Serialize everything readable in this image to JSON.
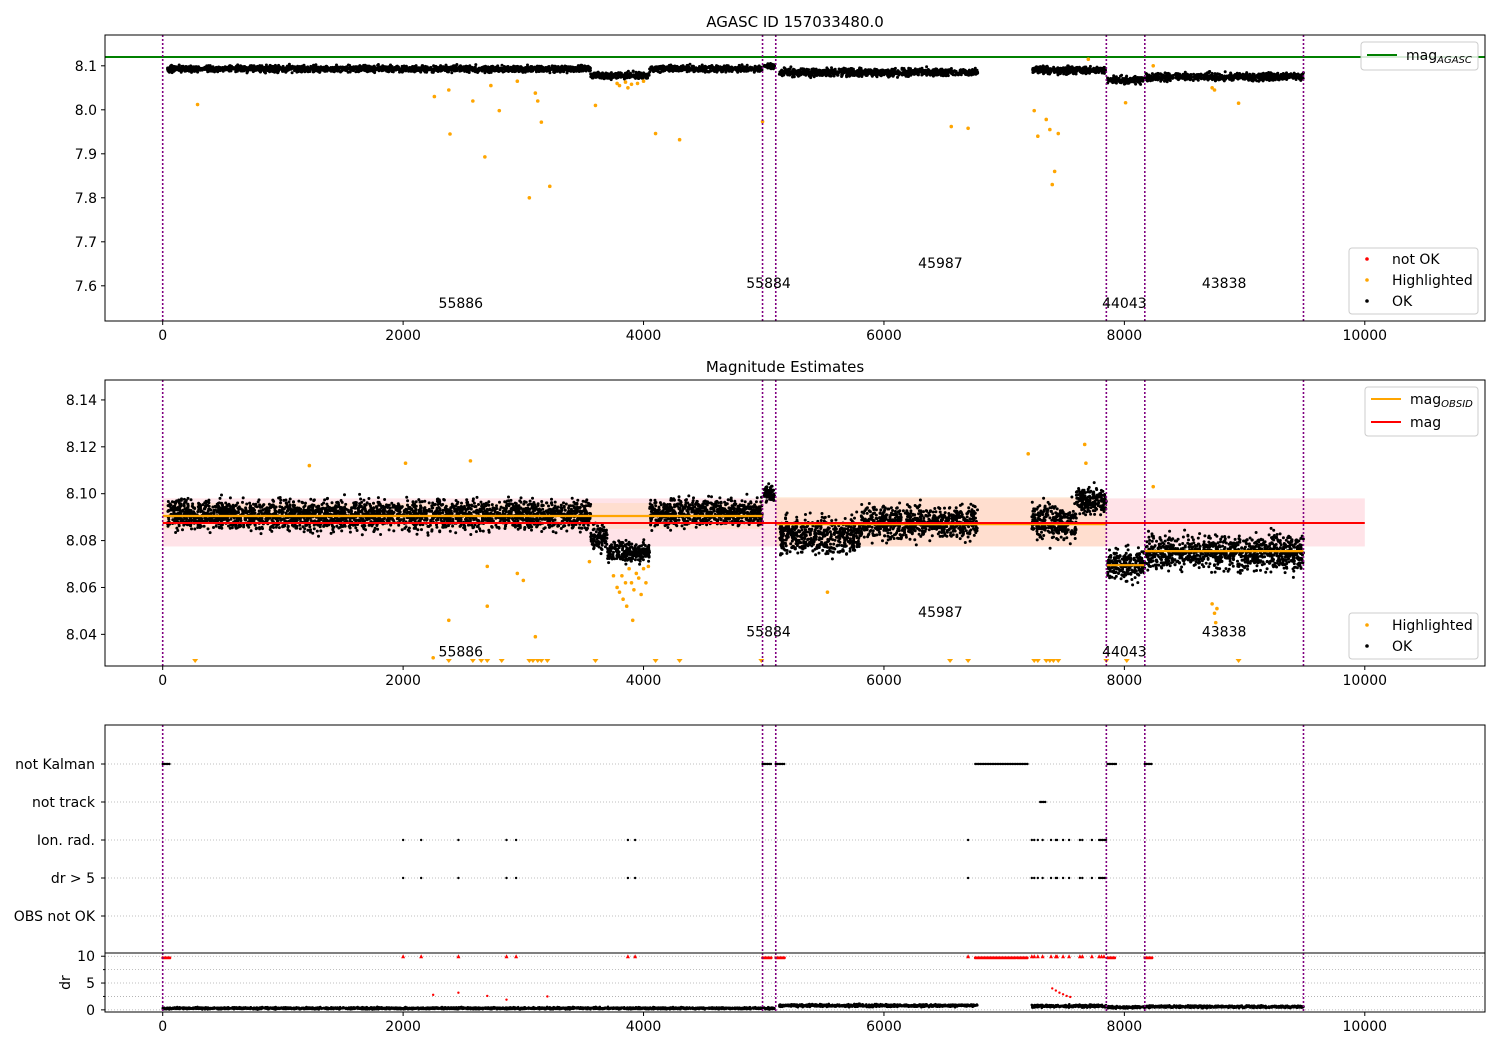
{
  "figure": {
    "title": "AGASC ID 157033480.0"
  },
  "colors": {
    "obs_line": "#800080",
    "ok": "#000000",
    "highlighted": "#ffa500",
    "not_ok": "#ff0000",
    "mag_agasc": "#008000",
    "mag": "#ff0000",
    "mag_obsid": "#ffa500",
    "band_mag": "#ffc0cb",
    "band_obsid": "#ffdab9"
  },
  "chart_data": [
    {
      "id": "top",
      "type": "scatter",
      "title": "AGASC ID 157033480.0",
      "xlim": [
        -480,
        11000
      ],
      "ylim": [
        7.52,
        8.17
      ],
      "xticks": [
        0,
        2000,
        4000,
        6000,
        8000,
        10000
      ],
      "xtick_labels": [
        "0",
        "2000",
        "4000",
        "6000",
        "8000",
        "10000"
      ],
      "yticks": [
        7.6,
        7.7,
        7.8,
        7.9,
        8.0,
        8.1
      ],
      "ytick_labels": [
        "7.6",
        "7.7",
        "7.8",
        "7.9",
        "8.0",
        "8.1"
      ],
      "obs_boundaries": [
        0,
        4990,
        5100,
        7850,
        8170,
        9490
      ],
      "obs_labels": [
        {
          "text": "55886",
          "x": 2480,
          "y": 7.55
        },
        {
          "text": "55884",
          "x": 5040,
          "y": 7.595
        },
        {
          "text": "45987",
          "x": 6470,
          "y": 7.64
        },
        {
          "text": "44043",
          "x": 8000,
          "y": 7.55
        },
        {
          "text": "43838",
          "x": 8830,
          "y": 7.595
        }
      ],
      "mag_agasc": 8.12,
      "legend_upper": {
        "placement": "upper right",
        "entries": [
          "mag_AGASC"
        ]
      },
      "legend_lower": {
        "placement": "lower right",
        "entries": [
          "not OK",
          "Highlighted",
          "OK"
        ]
      },
      "ok_segments": [
        {
          "x0": 40,
          "x1": 3560,
          "y": 8.093,
          "spread": 0.01
        },
        {
          "x0": 3560,
          "x1": 4050,
          "y": 8.078,
          "spread": 0.01
        },
        {
          "x0": 4050,
          "x1": 4990,
          "y": 8.093,
          "spread": 0.01
        },
        {
          "x0": 5000,
          "x1": 5090,
          "y": 8.1,
          "spread": 0.008
        },
        {
          "x0": 5130,
          "x1": 6780,
          "y": 8.085,
          "spread": 0.012
        },
        {
          "x0": 7230,
          "x1": 7850,
          "y": 8.09,
          "spread": 0.012
        },
        {
          "x0": 7860,
          "x1": 8170,
          "y": 8.068,
          "spread": 0.012
        },
        {
          "x0": 8180,
          "x1": 9490,
          "y": 8.075,
          "spread": 0.012
        }
      ],
      "highlighted_points": [
        [
          290,
          8.012
        ],
        [
          2260,
          8.03
        ],
        [
          2380,
          8.045
        ],
        [
          2390,
          7.945
        ],
        [
          2580,
          8.02
        ],
        [
          2680,
          7.893
        ],
        [
          2730,
          8.055
        ],
        [
          2800,
          7.998
        ],
        [
          2950,
          8.065
        ],
        [
          3050,
          7.8
        ],
        [
          3100,
          8.038
        ],
        [
          3120,
          8.02
        ],
        [
          3150,
          7.972
        ],
        [
          3220,
          7.826
        ],
        [
          3600,
          8.01
        ],
        [
          3780,
          8.06
        ],
        [
          3800,
          8.055
        ],
        [
          3850,
          8.063
        ],
        [
          3870,
          8.05
        ],
        [
          3900,
          8.058
        ],
        [
          3950,
          8.06
        ],
        [
          4000,
          8.065
        ],
        [
          4100,
          7.946
        ],
        [
          4300,
          7.932
        ],
        [
          4990,
          7.973
        ],
        [
          6560,
          7.962
        ],
        [
          6700,
          7.958
        ],
        [
          7250,
          7.998
        ],
        [
          7280,
          7.94
        ],
        [
          7350,
          7.978
        ],
        [
          7400,
          7.83
        ],
        [
          7420,
          7.86
        ],
        [
          7450,
          7.946
        ],
        [
          7380,
          7.955
        ],
        [
          7700,
          8.115
        ],
        [
          8010,
          8.016
        ],
        [
          8240,
          8.1
        ],
        [
          8730,
          8.05
        ],
        [
          8750,
          8.045
        ],
        [
          8950,
          8.015
        ]
      ]
    },
    {
      "id": "mid",
      "type": "scatter",
      "title": "Magnitude Estimates",
      "xlim": [
        -480,
        11000
      ],
      "ylim": [
        8.0265,
        8.1485
      ],
      "xticks": [
        0,
        2000,
        4000,
        6000,
        8000,
        10000
      ],
      "xtick_labels": [
        "0",
        "2000",
        "4000",
        "6000",
        "8000",
        "10000"
      ],
      "yticks": [
        8.04,
        8.06,
        8.08,
        8.1,
        8.12,
        8.14
      ],
      "ytick_labels": [
        "8.04",
        "8.06",
        "8.08",
        "8.10",
        "8.12",
        "8.14"
      ],
      "obs_boundaries": [
        0,
        4990,
        5100,
        7850,
        8170,
        9490
      ],
      "obs_labels": [
        {
          "text": "55886",
          "x": 2480,
          "y": 8.0305
        },
        {
          "text": "55884",
          "x": 5040,
          "y": 8.039
        },
        {
          "text": "45987",
          "x": 6470,
          "y": 8.0475
        },
        {
          "text": "44043",
          "x": 8000,
          "y": 8.0305
        },
        {
          "text": "43838",
          "x": 8830,
          "y": 8.039
        }
      ],
      "mag": 8.0875,
      "mag_band": [
        8.0775,
        8.098
      ],
      "mag_line_x": [
        0,
        10000
      ],
      "mag_obsid": [
        {
          "x0": 0,
          "x1": 4990,
          "y": 8.0905,
          "band": [
            8.085,
            8.096
          ]
        },
        {
          "x0": 5100,
          "x1": 7850,
          "y": 8.087,
          "band": [
            8.0775,
            8.0985
          ]
        },
        {
          "x0": 7850,
          "x1": 8170,
          "y": 8.0695,
          "band": [
            8.0695,
            8.0695
          ]
        },
        {
          "x0": 8170,
          "x1": 9490,
          "y": 8.0755,
          "band": [
            8.0755,
            8.0755
          ]
        }
      ],
      "legend_upper": {
        "placement": "upper right",
        "entries": [
          "mag_OBSID",
          "mag"
        ]
      },
      "legend_lower": {
        "placement": "lower right",
        "entries": [
          "Highlighted",
          "OK"
        ]
      },
      "ok_segments": [
        {
          "x0": 40,
          "x1": 3560,
          "y": 8.091,
          "spread": 0.009
        },
        {
          "x0": 3560,
          "x1": 3700,
          "y": 8.082,
          "spread": 0.007
        },
        {
          "x0": 3700,
          "x1": 4050,
          "y": 8.075,
          "spread": 0.006
        },
        {
          "x0": 4050,
          "x1": 4990,
          "y": 8.092,
          "spread": 0.008
        },
        {
          "x0": 5000,
          "x1": 5090,
          "y": 8.1,
          "spread": 0.005
        },
        {
          "x0": 5130,
          "x1": 5800,
          "y": 8.082,
          "spread": 0.01
        },
        {
          "x0": 5800,
          "x1": 6780,
          "y": 8.088,
          "spread": 0.01
        },
        {
          "x0": 7230,
          "x1": 7600,
          "y": 8.088,
          "spread": 0.01
        },
        {
          "x0": 7600,
          "x1": 7850,
          "y": 8.097,
          "spread": 0.008
        },
        {
          "x0": 7860,
          "x1": 8170,
          "y": 8.07,
          "spread": 0.009
        },
        {
          "x0": 8180,
          "x1": 9490,
          "y": 8.075,
          "spread": 0.01
        }
      ],
      "highlighted_points": [
        [
          1220,
          8.112
        ],
        [
          2020,
          8.113
        ],
        [
          2250,
          8.03
        ],
        [
          2380,
          8.046
        ],
        [
          2560,
          8.114
        ],
        [
          2700,
          8.069
        ],
        [
          2700,
          8.052
        ],
        [
          2950,
          8.066
        ],
        [
          3000,
          8.063
        ],
        [
          3100,
          8.039
        ],
        [
          3550,
          8.071
        ],
        [
          3750,
          8.065
        ],
        [
          3780,
          8.06
        ],
        [
          3800,
          8.058
        ],
        [
          3820,
          8.065
        ],
        [
          3830,
          8.055
        ],
        [
          3850,
          8.062
        ],
        [
          3860,
          8.052
        ],
        [
          3880,
          8.068
        ],
        [
          3900,
          8.062
        ],
        [
          3910,
          8.046
        ],
        [
          3920,
          8.059
        ],
        [
          3940,
          8.066
        ],
        [
          3960,
          8.064
        ],
        [
          3980,
          8.057
        ],
        [
          4000,
          8.068
        ],
        [
          4020,
          8.062
        ],
        [
          4040,
          8.069
        ],
        [
          5530,
          8.058
        ],
        [
          7200,
          8.117
        ],
        [
          7670,
          8.121
        ],
        [
          7680,
          8.113
        ],
        [
          8240,
          8.103
        ],
        [
          8730,
          8.053
        ],
        [
          8750,
          8.049
        ],
        [
          8760,
          8.045
        ],
        [
          8770,
          8.051
        ]
      ],
      "offscale_markers": [
        270,
        2380,
        2580,
        2650,
        2700,
        2820,
        3050,
        3080,
        3120,
        3150,
        3200,
        3600,
        4100,
        4300,
        4980,
        6550,
        6700,
        7250,
        7280,
        7350,
        7380,
        7410,
        7450,
        7850,
        8020,
        8950
      ]
    },
    {
      "id": "flags",
      "type": "scatter",
      "title": "",
      "xlim": [
        -480,
        11000
      ],
      "categories": [
        "not Kalman",
        "not track",
        "Ion. rad.",
        "dr > 5",
        "OBS not OK"
      ],
      "flag_points": {
        "not Kalman": {
          "ranges": [
            [
              0,
              60
            ],
            [
              4990,
              5070
            ],
            [
              5100,
              5180
            ],
            [
              6760,
              7200
            ],
            [
              7860,
              7930
            ],
            [
              8170,
              8230
            ]
          ],
          "points": []
        },
        "not track": {
          "ranges": [
            [
              7300,
              7350
            ]
          ],
          "points": []
        },
        "Ion. rad.": {
          "ranges": [
            [
              7790,
              7850
            ]
          ],
          "points": [
            2000,
            2150,
            2460,
            2860,
            2940,
            3870,
            3930,
            6700,
            7230,
            7250,
            7280,
            7320,
            7390,
            7430,
            7440,
            7490,
            7540,
            7630,
            7650,
            7730
          ]
        },
        "dr > 5": {
          "ranges": [
            [
              7790,
              7850
            ]
          ],
          "points": [
            2000,
            2150,
            2460,
            2860,
            2940,
            3870,
            3930,
            6700,
            7230,
            7250,
            7280,
            7320,
            7390,
            7430,
            7440,
            7490,
            7540,
            7630,
            7650,
            7730
          ]
        },
        "OBS not OK": {
          "ranges": [],
          "points": []
        }
      }
    },
    {
      "id": "dr",
      "type": "scatter",
      "title": "",
      "xlim": [
        -480,
        11000
      ],
      "ylim": [
        -0.4,
        10.6
      ],
      "ylabel": "dr",
      "xticks": [
        0,
        2000,
        4000,
        6000,
        8000,
        10000
      ],
      "xtick_labels": [
        "0",
        "2000",
        "4000",
        "6000",
        "8000",
        "10000"
      ],
      "yticks": [
        0,
        5,
        10
      ],
      "ytick_labels": [
        "0",
        "5",
        "10"
      ],
      "ok_segments": [
        {
          "x0": 0,
          "x1": 4990,
          "y": 0.3,
          "spread": 0.25
        },
        {
          "x0": 5000,
          "x1": 5090,
          "y": 0.3,
          "spread": 0.25
        },
        {
          "x0": 5130,
          "x1": 6780,
          "y": 0.8,
          "spread": 0.35
        },
        {
          "x0": 7230,
          "x1": 7850,
          "y": 0.7,
          "spread": 0.35
        },
        {
          "x0": 7860,
          "x1": 8170,
          "y": 0.5,
          "spread": 0.3
        },
        {
          "x0": 8180,
          "x1": 9490,
          "y": 0.6,
          "spread": 0.3
        }
      ],
      "not_ok_points": [
        [
          2250,
          2.8
        ],
        [
          2460,
          3.2
        ],
        [
          2700,
          2.6
        ],
        [
          2860,
          1.9
        ],
        [
          3200,
          2.5
        ],
        [
          7400,
          4.0
        ],
        [
          7430,
          3.6
        ],
        [
          7460,
          3.2
        ],
        [
          7490,
          2.9
        ],
        [
          7520,
          2.6
        ],
        [
          7550,
          2.4
        ]
      ],
      "clipped_ranges": [
        [
          0,
          60
        ],
        [
          4990,
          5070
        ],
        [
          5100,
          5180
        ],
        [
          6760,
          7200
        ],
        [
          7860,
          7930
        ],
        [
          8170,
          8230
        ]
      ],
      "clipped_points": [
        2000,
        2150,
        2460,
        2860,
        2940,
        3870,
        3930,
        6700,
        7230,
        7250,
        7280,
        7320,
        7390,
        7430,
        7440,
        7490,
        7540,
        7630,
        7650,
        7730,
        7790,
        7810,
        7830
      ]
    }
  ]
}
